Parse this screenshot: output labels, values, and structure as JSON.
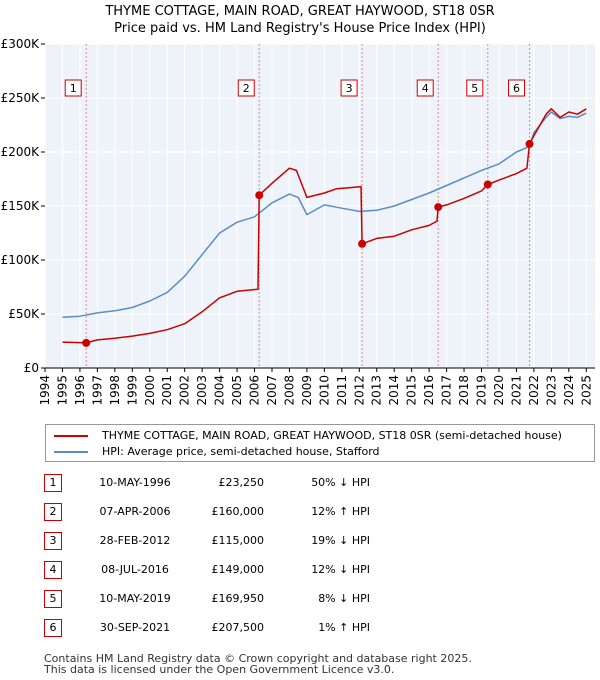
{
  "chart_data": {
    "type": "line",
    "title": "THYME COTTAGE, MAIN ROAD, GREAT HAYWOOD, ST18 0SR",
    "subtitle": "Price paid vs. HM Land Registry's House Price Index (HPI)",
    "xlim": [
      1994,
      2025.5
    ],
    "ylim": [
      0,
      300000
    ],
    "x_ticks": [
      "1994",
      "1995",
      "1996",
      "1997",
      "1998",
      "1999",
      "2000",
      "2001",
      "2002",
      "2003",
      "2004",
      "2005",
      "2006",
      "2007",
      "2008",
      "2009",
      "2010",
      "2011",
      "2012",
      "2013",
      "2014",
      "2015",
      "2016",
      "2017",
      "2018",
      "2019",
      "2020",
      "2021",
      "2022",
      "2023",
      "2024",
      "2025"
    ],
    "y_ticks": [
      {
        "value": 0,
        "label": "£0"
      },
      {
        "value": 50000,
        "label": "£50K"
      },
      {
        "value": 100000,
        "label": "£100K"
      },
      {
        "value": 150000,
        "label": "£150K"
      },
      {
        "value": 200000,
        "label": "£200K"
      },
      {
        "value": 250000,
        "label": "£250K"
      },
      {
        "value": 300000,
        "label": "£300K"
      }
    ],
    "series": [
      {
        "name": "THYME COTTAGE, MAIN ROAD, GREAT HAYWOOD, ST18 0SR (semi-detached house)",
        "color": "#cc0000",
        "points": [
          [
            1995.0,
            24000
          ],
          [
            1996.0,
            23500
          ],
          [
            1996.36,
            23250
          ],
          [
            1997.0,
            26000
          ],
          [
            1998.0,
            27500
          ],
          [
            1999.0,
            29500
          ],
          [
            2000.0,
            32000
          ],
          [
            2001.0,
            35500
          ],
          [
            2002.0,
            41000
          ],
          [
            2003.0,
            52000
          ],
          [
            2004.0,
            65000
          ],
          [
            2005.0,
            71000
          ],
          [
            2006.2,
            73000
          ],
          [
            2006.27,
            160000
          ],
          [
            2007.0,
            171000
          ],
          [
            2008.0,
            185000
          ],
          [
            2008.4,
            183000
          ],
          [
            2009.0,
            158000
          ],
          [
            2010.0,
            162000
          ],
          [
            2010.7,
            166000
          ],
          [
            2011.5,
            167000
          ],
          [
            2012.1,
            168000
          ],
          [
            2012.16,
            115000
          ],
          [
            2013.0,
            120000
          ],
          [
            2014.0,
            122000
          ],
          [
            2015.0,
            128000
          ],
          [
            2016.0,
            132000
          ],
          [
            2016.45,
            136000
          ],
          [
            2016.52,
            149000
          ],
          [
            2017.0,
            151000
          ],
          [
            2018.0,
            157000
          ],
          [
            2019.0,
            164000
          ],
          [
            2019.36,
            169950
          ],
          [
            2020.0,
            174000
          ],
          [
            2021.0,
            180000
          ],
          [
            2021.6,
            185000
          ],
          [
            2021.75,
            207500
          ],
          [
            2022.0,
            215000
          ],
          [
            2022.7,
            235000
          ],
          [
            2023.0,
            240000
          ],
          [
            2023.5,
            232000
          ],
          [
            2024.0,
            237000
          ],
          [
            2024.5,
            235000
          ],
          [
            2025.0,
            240000
          ]
        ]
      },
      {
        "name": "HPI: Average price, semi-detached house, Stafford",
        "color": "#5b8cc8",
        "points": [
          [
            1995.0,
            47000
          ],
          [
            1996.0,
            48000
          ],
          [
            1997.0,
            51000
          ],
          [
            1998.0,
            53000
          ],
          [
            1999.0,
            56000
          ],
          [
            2000.0,
            62000
          ],
          [
            2001.0,
            70000
          ],
          [
            2002.0,
            85000
          ],
          [
            2003.0,
            105000
          ],
          [
            2004.0,
            125000
          ],
          [
            2005.0,
            135000
          ],
          [
            2006.0,
            140000
          ],
          [
            2007.0,
            153000
          ],
          [
            2008.0,
            161000
          ],
          [
            2008.5,
            158000
          ],
          [
            2009.0,
            142000
          ],
          [
            2010.0,
            151000
          ],
          [
            2011.0,
            148000
          ],
          [
            2012.0,
            145000
          ],
          [
            2013.0,
            146000
          ],
          [
            2014.0,
            150000
          ],
          [
            2015.0,
            156000
          ],
          [
            2016.0,
            162000
          ],
          [
            2017.0,
            169000
          ],
          [
            2018.0,
            176000
          ],
          [
            2019.0,
            183000
          ],
          [
            2020.0,
            189000
          ],
          [
            2021.0,
            200000
          ],
          [
            2021.75,
            205000
          ],
          [
            2022.0,
            218000
          ],
          [
            2022.7,
            232000
          ],
          [
            2023.0,
            237000
          ],
          [
            2023.5,
            231000
          ],
          [
            2024.0,
            233000
          ],
          [
            2024.5,
            232000
          ],
          [
            2025.0,
            236000
          ]
        ]
      }
    ],
    "sales": [
      {
        "id": "1",
        "x": 1996.36,
        "price": 23250,
        "date": "10-MAY-1996",
        "price_label": "£23,250",
        "hpi": "50% ↓ HPI"
      },
      {
        "id": "2",
        "x": 2006.27,
        "price": 160000,
        "date": "07-APR-2006",
        "price_label": "£160,000",
        "hpi": "12% ↑ HPI"
      },
      {
        "id": "3",
        "x": 2012.16,
        "price": 115000,
        "date": "28-FEB-2012",
        "price_label": "£115,000",
        "hpi": "19% ↓ HPI"
      },
      {
        "id": "4",
        "x": 2016.52,
        "price": 149000,
        "date": "08-JUL-2016",
        "price_label": "£149,000",
        "hpi": "12% ↓ HPI"
      },
      {
        "id": "5",
        "x": 2019.36,
        "price": 169950,
        "date": "10-MAY-2019",
        "price_label": "£169,950",
        "hpi": "8% ↓ HPI"
      },
      {
        "id": "6",
        "x": 2021.75,
        "price": 207500,
        "date": "30-SEP-2021",
        "price_label": "£207,500",
        "hpi": "1% ↑ HPI"
      }
    ]
  },
  "legend": {
    "property_label": "THYME COTTAGE, MAIN ROAD, GREAT HAYWOOD, ST18 0SR (semi-detached house)",
    "hpi_label": "HPI: Average price, semi-detached house, Stafford"
  },
  "footer": {
    "line1": "Contains HM Land Registry data © Crown copyright and database right 2025.",
    "line2": "This data is licensed under the Open Government Licence v3.0."
  },
  "colors": {
    "property": "#cc0000",
    "hpi": "#5b8cc8",
    "plot_bg": "#eef3fa",
    "grid": "#ffffff"
  }
}
